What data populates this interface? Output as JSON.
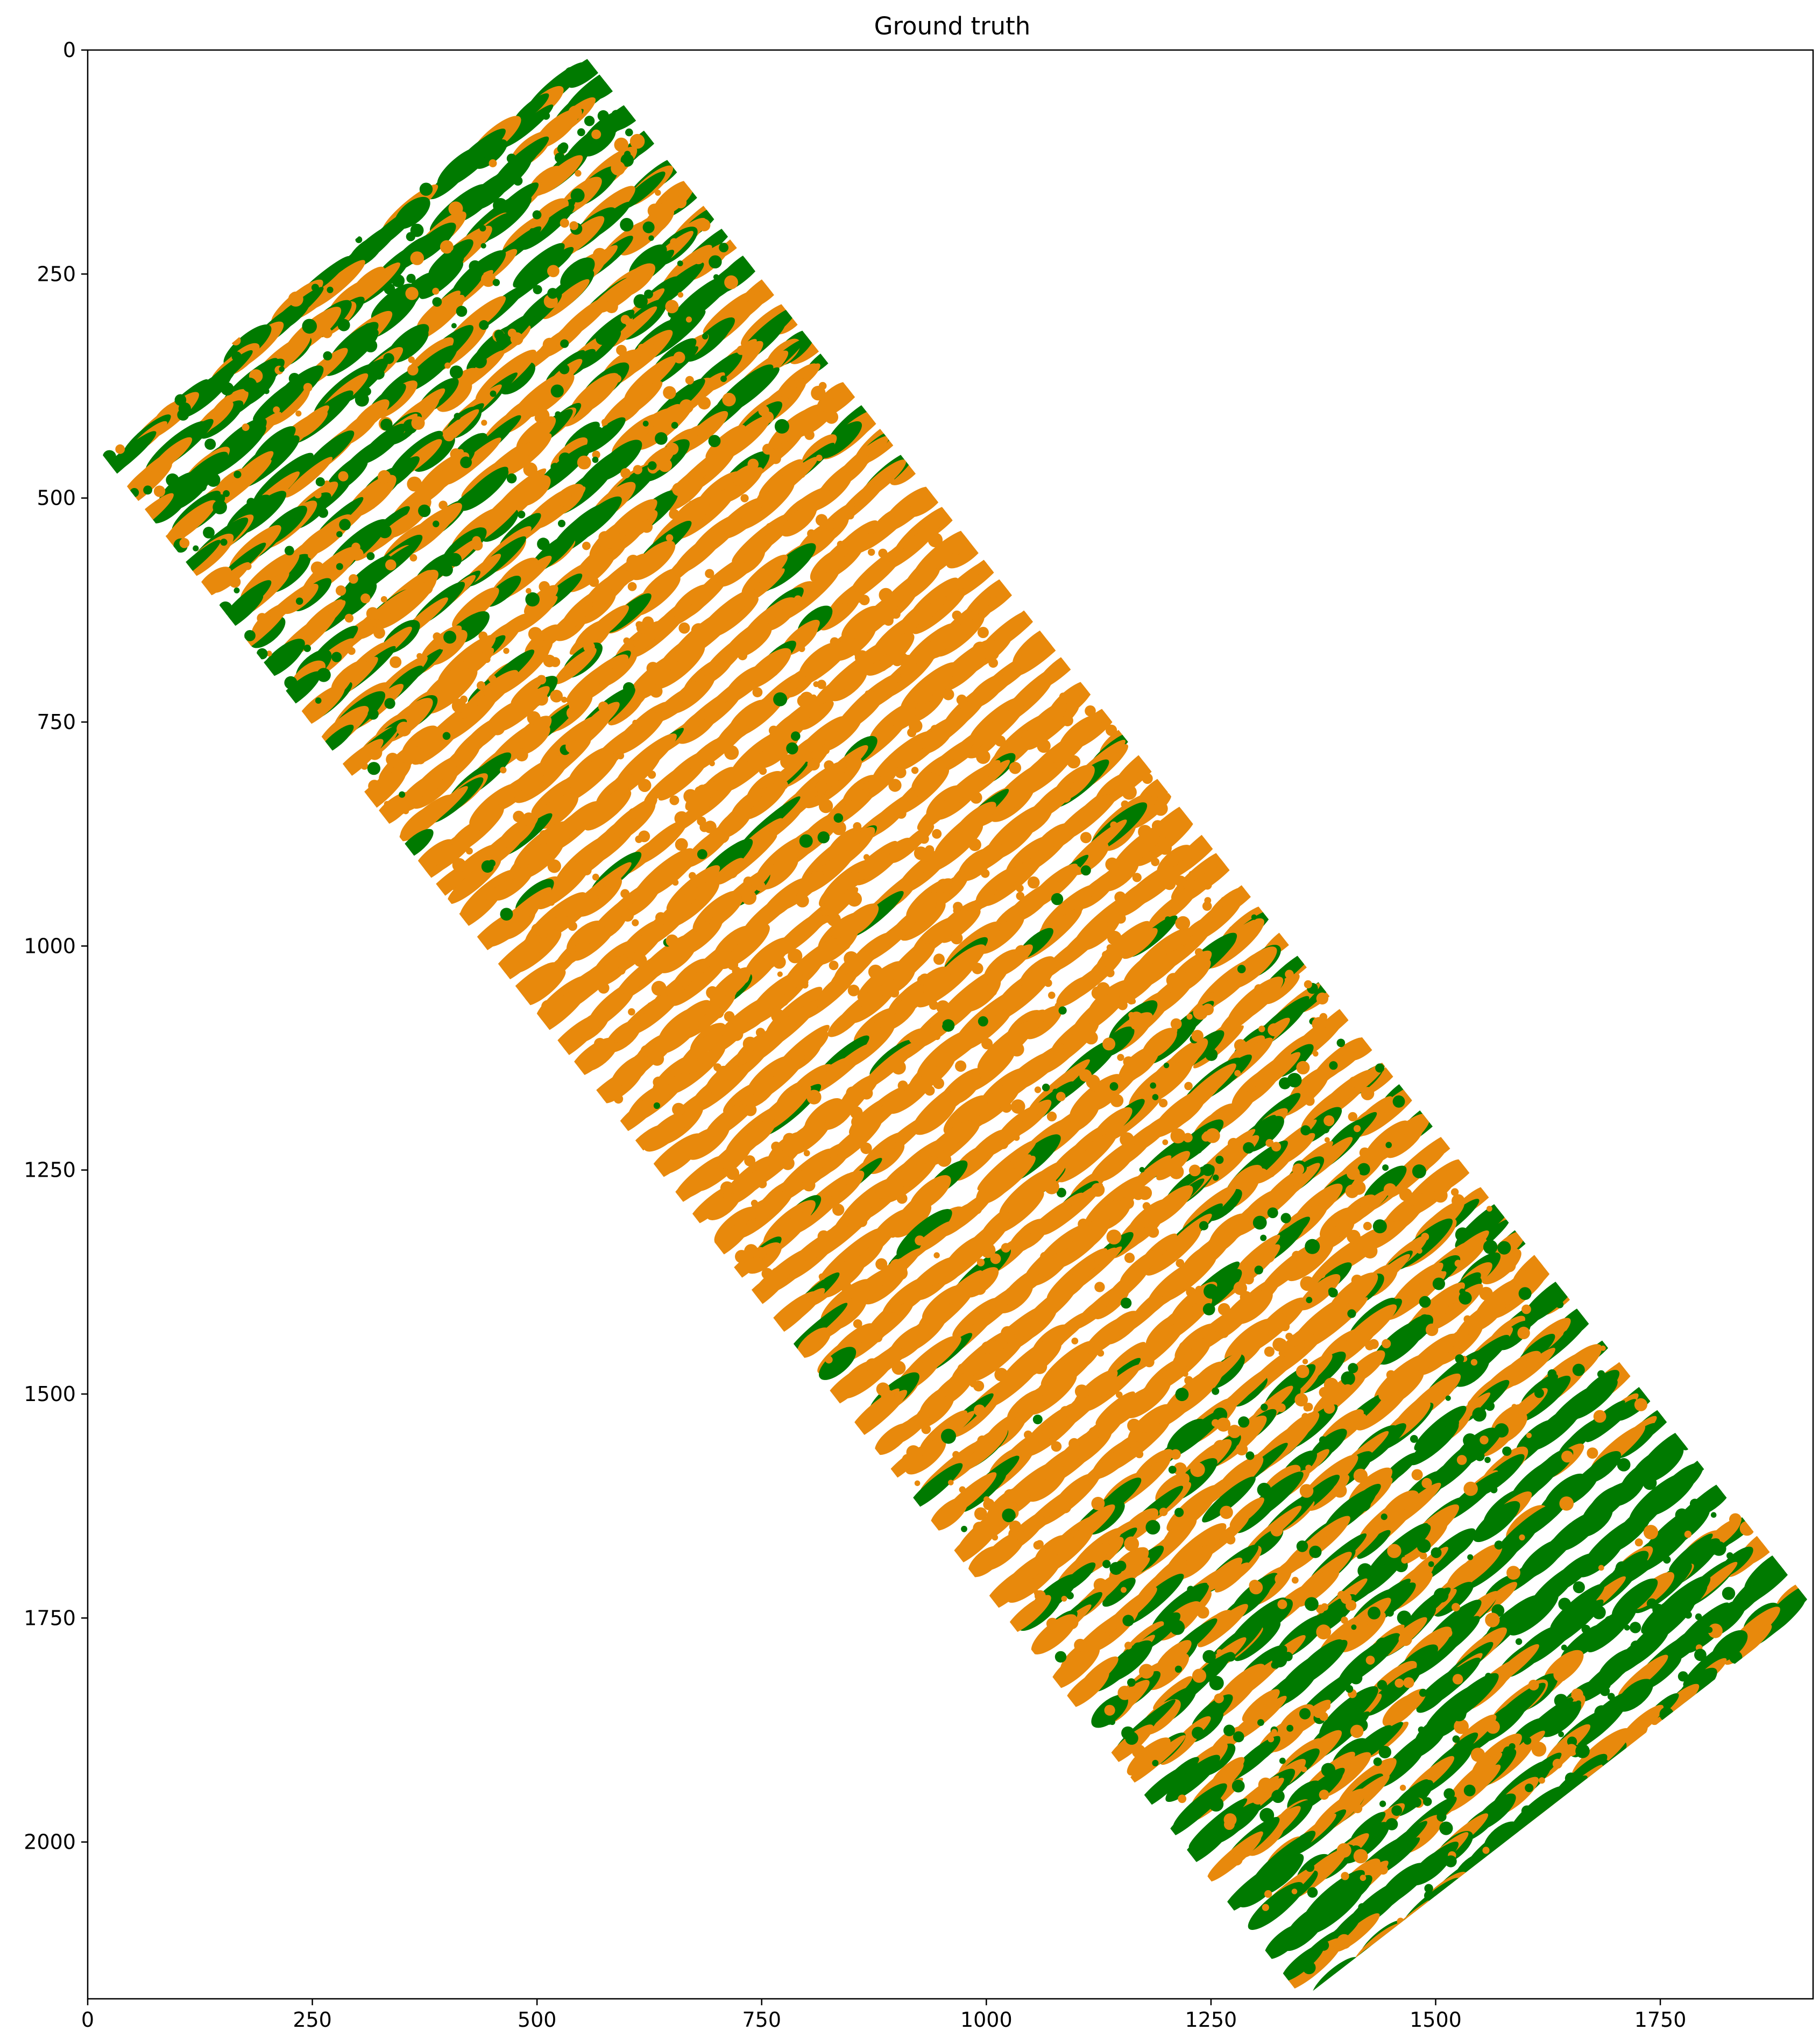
{
  "chart_data": {
    "type": "heatmap",
    "title": "Ground truth",
    "xlabel": "",
    "ylabel": "",
    "xlim": [
      0,
      1920
    ],
    "ylim": [
      2175,
      0
    ],
    "x_ticks": [
      0,
      250,
      500,
      750,
      1000,
      1250,
      1500,
      1750
    ],
    "y_ticks": [
      0,
      250,
      500,
      750,
      1000,
      1250,
      1500,
      1750,
      2000
    ],
    "x_tick_labels": [
      "0",
      "250",
      "500",
      "750",
      "1000",
      "1250",
      "1500",
      "1750"
    ],
    "y_tick_labels": [
      "0",
      "250",
      "500",
      "750",
      "1000",
      "1250",
      "1500",
      "1750",
      "2000"
    ],
    "grid": false,
    "legend": "none",
    "classes": [
      {
        "color": "#e8890c"
      },
      {
        "color": "#007a00"
      }
    ],
    "field_corners": [
      [
        548,
        0
      ],
      [
        1918,
        1735
      ],
      [
        1352,
        2175
      ],
      [
        15,
        450
      ]
    ],
    "rows": {
      "orientation_deg": -52,
      "count": 62
    }
  }
}
